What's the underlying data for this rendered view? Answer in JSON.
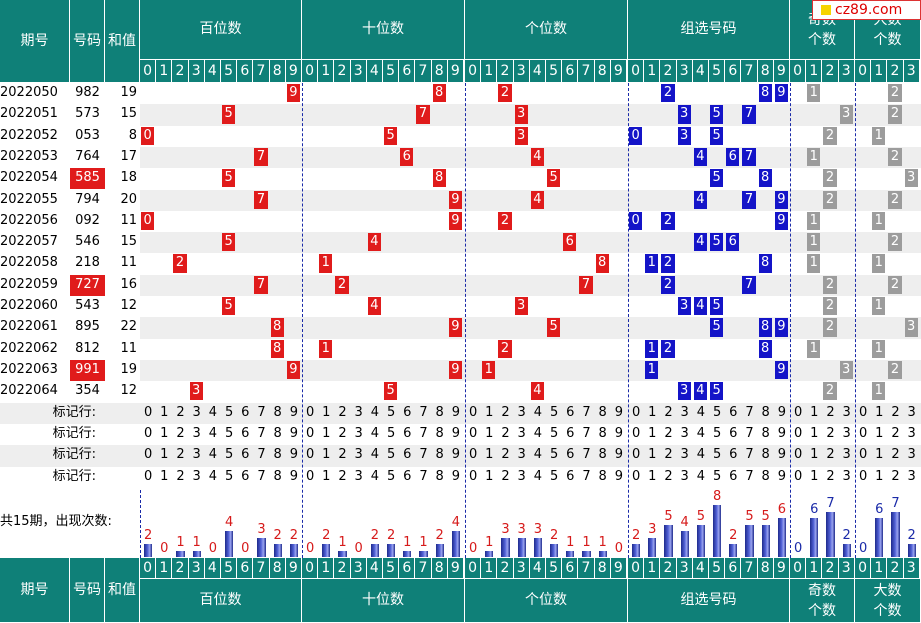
{
  "logo_text": "cz89.com",
  "colors": {
    "header": "#0f8078",
    "red_ball": "#e01b1b",
    "blue_ball": "#1414c8",
    "gray_ball": "#9c9c9c",
    "row_band": "#eeeeee",
    "count_label": "#d61a1a"
  },
  "headers": {
    "period": "期号",
    "number": "号码",
    "sum": "和值",
    "hundreds": "百位数",
    "tens": "十位数",
    "units": "个位数",
    "group": "组选号码",
    "odd_count": "奇数个数",
    "big_count": "大数个数"
  },
  "digit_labels": [
    "0",
    "1",
    "2",
    "3",
    "4",
    "5",
    "6",
    "7",
    "8",
    "9"
  ],
  "small_labels": [
    "0",
    "1",
    "2",
    "3"
  ],
  "marker_label": "标记行:",
  "count_label": "共15期，出现次数:",
  "chart_data": {
    "type": "table",
    "rows": [
      {
        "period": "2022050",
        "number": "982",
        "sum": "19",
        "hl": false,
        "group": [
          2,
          8,
          9
        ],
        "odd": 1,
        "big": 2
      },
      {
        "period": "2022051",
        "number": "573",
        "sum": "15",
        "hl": false,
        "group": [
          3,
          5,
          7
        ],
        "odd": 3,
        "big": 2
      },
      {
        "period": "2022052",
        "number": "053",
        "sum": "8",
        "hl": false,
        "group": [
          0,
          3,
          5
        ],
        "odd": 2,
        "big": 1
      },
      {
        "period": "2022053",
        "number": "764",
        "sum": "17",
        "hl": false,
        "group": [
          4,
          6,
          7
        ],
        "odd": 1,
        "big": 2
      },
      {
        "period": "2022054",
        "number": "585",
        "sum": "18",
        "hl": true,
        "group": [
          5,
          8
        ],
        "odd": 2,
        "big": 3
      },
      {
        "period": "2022055",
        "number": "794",
        "sum": "20",
        "hl": false,
        "group": [
          4,
          7,
          9
        ],
        "odd": 2,
        "big": 2
      },
      {
        "period": "2022056",
        "number": "092",
        "sum": "11",
        "hl": false,
        "group": [
          0,
          2,
          9
        ],
        "odd": 1,
        "big": 1
      },
      {
        "period": "2022057",
        "number": "546",
        "sum": "15",
        "hl": false,
        "group": [
          4,
          5,
          6
        ],
        "odd": 1,
        "big": 2
      },
      {
        "period": "2022058",
        "number": "218",
        "sum": "11",
        "hl": false,
        "group": [
          1,
          2,
          8
        ],
        "odd": 1,
        "big": 1
      },
      {
        "period": "2022059",
        "number": "727",
        "sum": "16",
        "hl": true,
        "group": [
          2,
          7
        ],
        "odd": 2,
        "big": 2
      },
      {
        "period": "2022060",
        "number": "543",
        "sum": "12",
        "hl": false,
        "group": [
          3,
          4,
          5
        ],
        "odd": 2,
        "big": 1
      },
      {
        "period": "2022061",
        "number": "895",
        "sum": "22",
        "hl": false,
        "group": [
          5,
          8,
          9
        ],
        "odd": 2,
        "big": 3
      },
      {
        "period": "2022062",
        "number": "812",
        "sum": "11",
        "hl": false,
        "group": [
          1,
          2,
          8
        ],
        "odd": 1,
        "big": 1
      },
      {
        "period": "2022063",
        "number": "991",
        "sum": "19",
        "hl": true,
        "group": [
          1,
          9
        ],
        "odd": 3,
        "big": 2
      },
      {
        "period": "2022064",
        "number": "354",
        "sum": "12",
        "hl": false,
        "group": [
          3,
          4,
          5
        ],
        "odd": 2,
        "big": 1
      }
    ],
    "counts": {
      "hundreds": [
        2,
        0,
        1,
        1,
        0,
        4,
        0,
        3,
        2,
        2
      ],
      "tens": [
        0,
        2,
        1,
        0,
        2,
        2,
        1,
        1,
        2,
        4
      ],
      "units": [
        0,
        1,
        3,
        3,
        3,
        2,
        1,
        1,
        1,
        0
      ],
      "group": [
        2,
        3,
        5,
        4,
        5,
        8,
        2,
        5,
        5,
        6
      ],
      "odd": [
        0,
        6,
        7,
        2
      ],
      "big": [
        0,
        6,
        7,
        2
      ]
    }
  }
}
